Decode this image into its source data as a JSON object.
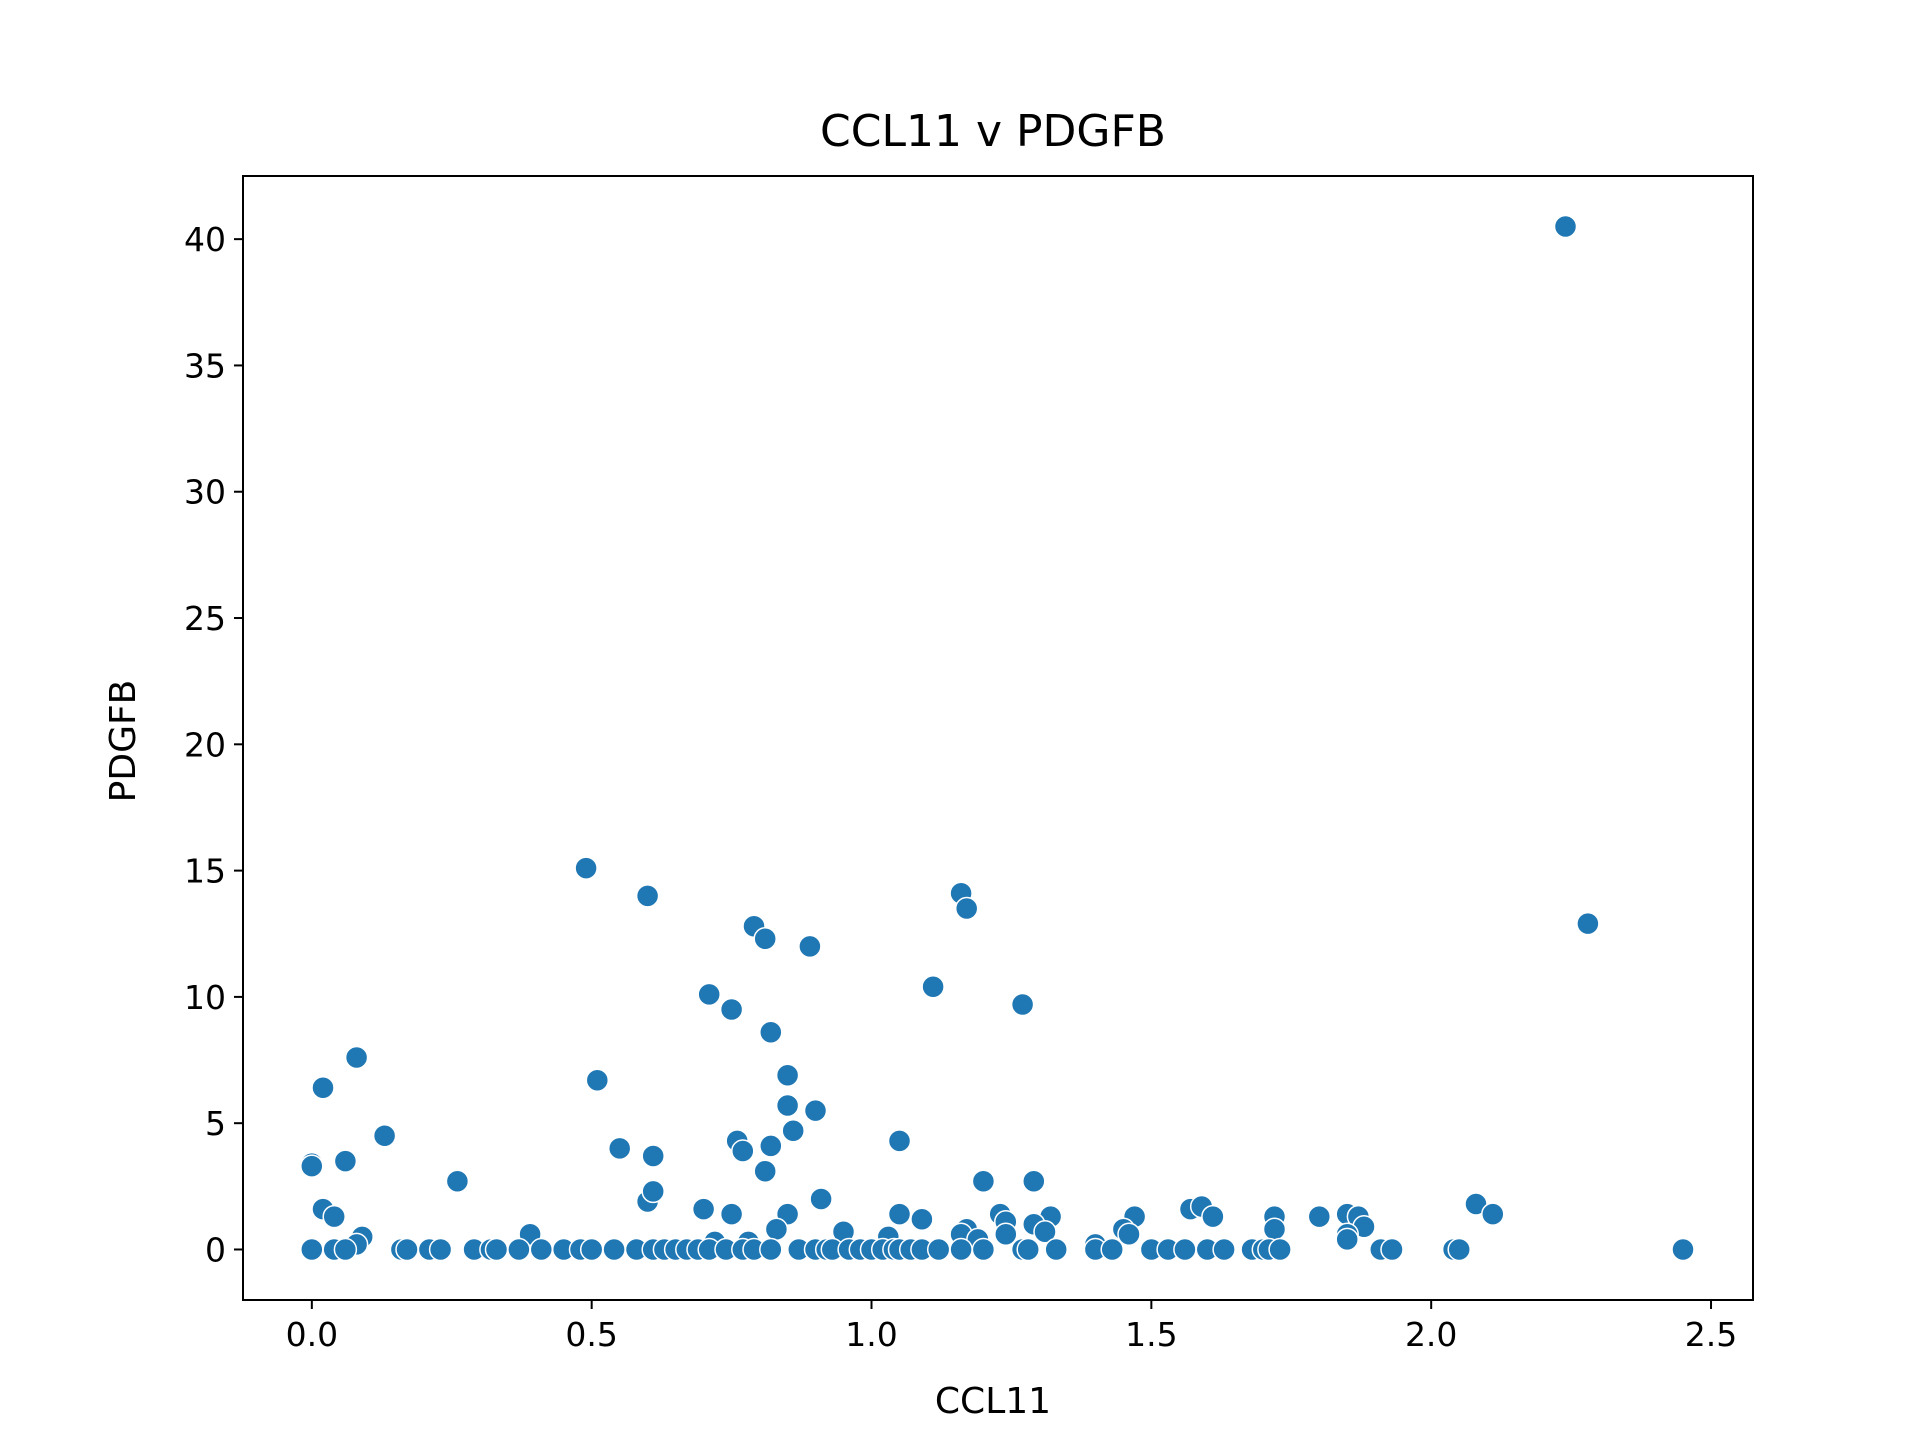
{
  "chart_data": {
    "type": "scatter",
    "title": "CCL11 v PDGFB",
    "xlabel": "CCL11",
    "ylabel": "PDGFB",
    "xlim": [
      -0.123,
      2.575
    ],
    "ylim": [
      -2.0,
      42.5
    ],
    "xticks": [
      0.0,
      0.5,
      1.0,
      1.5,
      2.0,
      2.5
    ],
    "xtick_labels": [
      "0.0",
      "0.5",
      "1.0",
      "1.5",
      "2.0",
      "2.5"
    ],
    "yticks": [
      0,
      5,
      10,
      15,
      20,
      25,
      30,
      35,
      40
    ],
    "ytick_labels": [
      "0",
      "5",
      "10",
      "15",
      "20",
      "25",
      "30",
      "35",
      "40"
    ],
    "grid": false,
    "marker_color": "#1f77b4",
    "series": [
      {
        "points": [
          [
            2.24,
            40.5
          ],
          [
            2.28,
            12.9
          ],
          [
            2.45,
            0.0
          ],
          [
            0.49,
            15.1
          ],
          [
            0.6,
            14.0
          ],
          [
            0.79,
            12.8
          ],
          [
            0.81,
            12.3
          ],
          [
            0.89,
            12.0
          ],
          [
            1.16,
            14.1
          ],
          [
            1.17,
            13.5
          ],
          [
            1.11,
            10.4
          ],
          [
            1.27,
            9.7
          ],
          [
            0.71,
            10.1
          ],
          [
            0.75,
            9.5
          ],
          [
            0.82,
            8.6
          ],
          [
            0.08,
            7.6
          ],
          [
            0.02,
            6.4
          ],
          [
            0.51,
            6.7
          ],
          [
            0.85,
            6.9
          ],
          [
            0.85,
            5.7
          ],
          [
            0.9,
            5.5
          ],
          [
            0.86,
            4.7
          ],
          [
            0.13,
            4.5
          ],
          [
            0.55,
            4.0
          ],
          [
            0.61,
            3.7
          ],
          [
            0.76,
            4.3
          ],
          [
            0.77,
            3.9
          ],
          [
            0.82,
            4.1
          ],
          [
            1.05,
            4.3
          ],
          [
            0.0,
            3.4
          ],
          [
            0.0,
            3.3
          ],
          [
            0.06,
            3.5
          ],
          [
            0.26,
            2.7
          ],
          [
            0.81,
            3.1
          ],
          [
            1.2,
            2.7
          ],
          [
            1.29,
            2.7
          ],
          [
            0.6,
            1.9
          ],
          [
            0.61,
            2.3
          ],
          [
            0.91,
            2.0
          ],
          [
            0.7,
            1.6
          ],
          [
            0.75,
            1.4
          ],
          [
            0.85,
            1.4
          ],
          [
            1.05,
            1.4
          ],
          [
            1.09,
            1.2
          ],
          [
            0.02,
            1.6
          ],
          [
            0.04,
            1.3
          ],
          [
            1.23,
            1.4
          ],
          [
            1.24,
            1.1
          ],
          [
            1.32,
            1.3
          ],
          [
            1.47,
            1.3
          ],
          [
            1.57,
            1.6
          ],
          [
            1.59,
            1.7
          ],
          [
            1.61,
            1.3
          ],
          [
            1.72,
            1.3
          ],
          [
            1.8,
            1.3
          ],
          [
            1.85,
            1.4
          ],
          [
            1.87,
            1.3
          ],
          [
            2.08,
            1.8
          ],
          [
            2.11,
            1.4
          ],
          [
            0.83,
            0.8
          ],
          [
            0.95,
            0.7
          ],
          [
            1.03,
            0.5
          ],
          [
            1.17,
            0.8
          ],
          [
            1.16,
            0.6
          ],
          [
            1.24,
            0.6
          ],
          [
            1.29,
            1.0
          ],
          [
            1.31,
            0.7
          ],
          [
            1.45,
            0.8
          ],
          [
            1.46,
            0.6
          ],
          [
            1.72,
            0.8
          ],
          [
            1.88,
            0.9
          ],
          [
            1.85,
            0.6
          ],
          [
            1.85,
            0.4
          ],
          [
            0.39,
            0.6
          ],
          [
            0.09,
            0.5
          ],
          [
            0.08,
            0.2
          ],
          [
            0.72,
            0.3
          ],
          [
            0.78,
            0.3
          ],
          [
            1.19,
            0.4
          ],
          [
            1.4,
            0.2
          ],
          [
            0.0,
            0.0
          ],
          [
            0.04,
            0.0
          ],
          [
            0.06,
            0.0
          ],
          [
            0.16,
            0.0
          ],
          [
            0.17,
            0.0
          ],
          [
            0.21,
            0.0
          ],
          [
            0.23,
            0.0
          ],
          [
            0.29,
            0.0
          ],
          [
            0.32,
            0.0
          ],
          [
            0.33,
            0.0
          ],
          [
            0.37,
            0.0
          ],
          [
            0.41,
            0.0
          ],
          [
            0.45,
            0.0
          ],
          [
            0.48,
            0.0
          ],
          [
            0.5,
            0.0
          ],
          [
            0.54,
            0.0
          ],
          [
            0.58,
            0.0
          ],
          [
            0.61,
            0.0
          ],
          [
            0.63,
            0.0
          ],
          [
            0.65,
            0.0
          ],
          [
            0.67,
            0.0
          ],
          [
            0.69,
            0.0
          ],
          [
            0.71,
            0.0
          ],
          [
            0.74,
            0.0
          ],
          [
            0.77,
            0.0
          ],
          [
            0.79,
            0.0
          ],
          [
            0.82,
            0.0
          ],
          [
            0.87,
            0.0
          ],
          [
            0.9,
            0.0
          ],
          [
            0.92,
            0.0
          ],
          [
            0.93,
            0.0
          ],
          [
            0.96,
            0.0
          ],
          [
            0.98,
            0.0
          ],
          [
            1.0,
            0.0
          ],
          [
            1.02,
            0.0
          ],
          [
            1.04,
            0.0
          ],
          [
            1.05,
            0.0
          ],
          [
            1.07,
            0.0
          ],
          [
            1.09,
            0.0
          ],
          [
            1.12,
            0.0
          ],
          [
            1.16,
            0.0
          ],
          [
            1.2,
            0.0
          ],
          [
            1.27,
            0.0
          ],
          [
            1.28,
            0.0
          ],
          [
            1.33,
            0.0
          ],
          [
            1.4,
            0.0
          ],
          [
            1.43,
            0.0
          ],
          [
            1.5,
            0.0
          ],
          [
            1.53,
            0.0
          ],
          [
            1.56,
            0.0
          ],
          [
            1.6,
            0.0
          ],
          [
            1.63,
            0.0
          ],
          [
            1.68,
            0.0
          ],
          [
            1.7,
            0.0
          ],
          [
            1.71,
            0.0
          ],
          [
            1.73,
            0.0
          ],
          [
            1.91,
            0.0
          ],
          [
            1.93,
            0.0
          ],
          [
            2.04,
            0.0
          ],
          [
            2.05,
            0.0
          ]
        ]
      }
    ]
  }
}
